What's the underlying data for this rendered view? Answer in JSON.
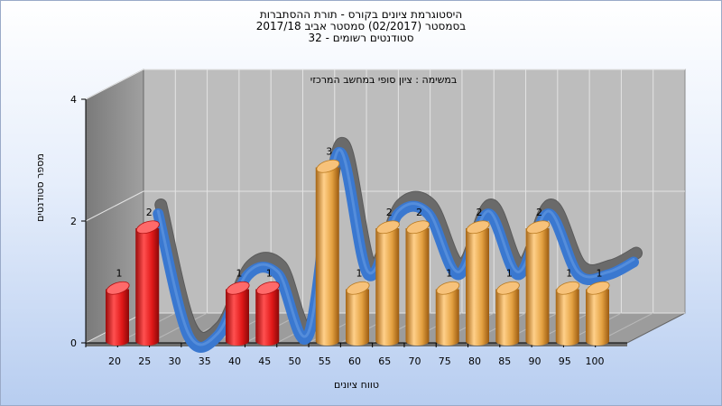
{
  "chart_data": {
    "type": "bar",
    "title_lines": [
      "היסטוגרמת ציונים בקורס - תורת ההסתברות",
      "בסמסטר  (02/2017)  סמסטר אביב 2017/18",
      "סטודנטים רשומים - 32"
    ],
    "subtitle": "במשימה : ציון סופי במחשב המרכזי",
    "xlabel": "טווח ציונים",
    "ylabel": "מספר סטודנטים",
    "categories": [
      "20",
      "25",
      "30",
      "35",
      "40",
      "45",
      "50",
      "55",
      "60",
      "65",
      "70",
      "75",
      "80",
      "85",
      "90",
      "95",
      "100"
    ],
    "values": [
      1,
      2,
      0,
      0,
      1,
      1,
      0,
      3,
      1,
      2,
      2,
      1,
      2,
      1,
      2,
      1,
      1
    ],
    "data_labels": [
      "1",
      "2",
      "",
      "",
      "1",
      "1",
      "",
      "3",
      "1",
      "2",
      "2",
      "1",
      "2",
      "1",
      "2",
      "1",
      "1"
    ],
    "bar_colors": [
      "#e02020",
      "#e02020",
      "#e02020",
      "#e02020",
      "#e02020",
      "#e02020",
      "#e02020",
      "#e8a640",
      "#e8a640",
      "#e8a640",
      "#e8a640",
      "#e8a640",
      "#e8a640",
      "#e8a640",
      "#e8a640",
      "#e8a640",
      "#e8a640"
    ],
    "y_ticks": [
      "0",
      "2",
      "4"
    ],
    "ylim": [
      0,
      4
    ],
    "grid": true,
    "trend_line": "smooth curve through bar tops",
    "colors": {
      "fail_bar": "#e02020",
      "pass_bar": "#e8a640",
      "curve_front": "#3a78d0",
      "curve_back": "#6a6a6a",
      "wall": "#8a8a8a",
      "back_plane": "#bdbdbd"
    }
  }
}
